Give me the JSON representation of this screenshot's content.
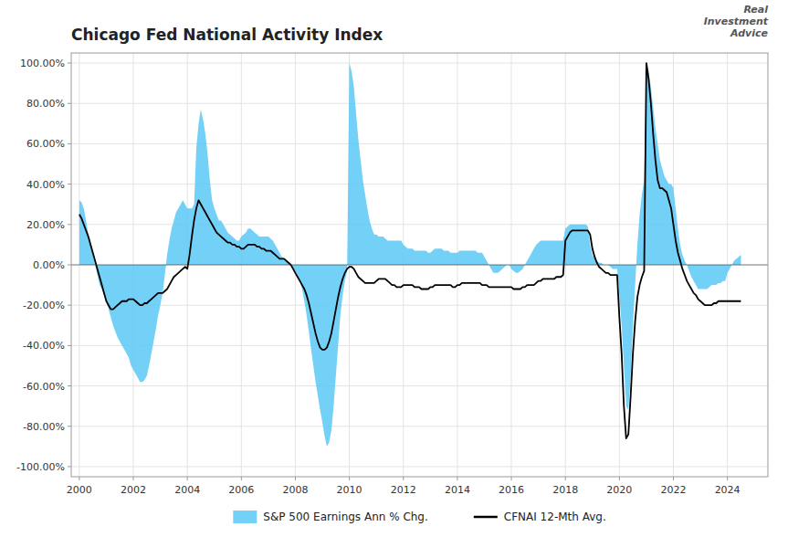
{
  "chart_data": {
    "type": "line",
    "title": "Chicago Fed National Activity Index",
    "annotations": [
      "Real\nInvestment\nAdvice"
    ],
    "xlim": [
      1999.7,
      2025.5
    ],
    "ylim": [
      -1.05,
      1.05
    ],
    "xticks": [
      2000,
      2002,
      2004,
      2006,
      2008,
      2010,
      2012,
      2014,
      2016,
      2018,
      2020,
      2022,
      2024
    ],
    "yticks": [
      {
        "value": -1.0,
        "label": "-100.00%"
      },
      {
        "value": -0.8,
        "label": "-80.00%"
      },
      {
        "value": -0.6,
        "label": "-60.00%"
      },
      {
        "value": -0.4,
        "label": "-40.00%"
      },
      {
        "value": -0.2,
        "label": "-20.00%"
      },
      {
        "value": 0.0,
        "label": "0.00%"
      },
      {
        "value": 0.2,
        "label": "20.00%"
      },
      {
        "value": 0.4,
        "label": "40.00%"
      },
      {
        "value": 0.6,
        "label": "60.00%"
      },
      {
        "value": 0.8,
        "label": "80.00%"
      },
      {
        "value": 1.0,
        "label": "100.00%"
      }
    ],
    "grid": true,
    "legend": "bottom",
    "x": [
      2000.0,
      2000.083,
      2000.167,
      2000.25,
      2000.333,
      2000.417,
      2000.5,
      2000.583,
      2000.667,
      2000.75,
      2000.833,
      2000.917,
      2001.0,
      2001.083,
      2001.167,
      2001.25,
      2001.333,
      2001.417,
      2001.5,
      2001.583,
      2001.667,
      2001.75,
      2001.833,
      2001.917,
      2002.0,
      2002.083,
      2002.167,
      2002.25,
      2002.333,
      2002.417,
      2002.5,
      2002.583,
      2002.667,
      2002.75,
      2002.833,
      2002.917,
      2003.0,
      2003.083,
      2003.167,
      2003.25,
      2003.333,
      2003.417,
      2003.5,
      2003.583,
      2003.667,
      2003.75,
      2003.833,
      2003.917,
      2004.0,
      2004.083,
      2004.167,
      2004.25,
      2004.333,
      2004.417,
      2004.5,
      2004.583,
      2004.667,
      2004.75,
      2004.833,
      2004.917,
      2005.0,
      2005.083,
      2005.167,
      2005.25,
      2005.333,
      2005.417,
      2005.5,
      2005.583,
      2005.667,
      2005.75,
      2005.833,
      2005.917,
      2006.0,
      2006.083,
      2006.167,
      2006.25,
      2006.333,
      2006.417,
      2006.5,
      2006.583,
      2006.667,
      2006.75,
      2006.833,
      2006.917,
      2007.0,
      2007.083,
      2007.167,
      2007.25,
      2007.333,
      2007.417,
      2007.5,
      2007.583,
      2007.667,
      2007.75,
      2007.833,
      2007.917,
      2008.0,
      2008.083,
      2008.167,
      2008.25,
      2008.333,
      2008.417,
      2008.5,
      2008.583,
      2008.667,
      2008.75,
      2008.833,
      2008.917,
      2009.0,
      2009.083,
      2009.167,
      2009.25,
      2009.333,
      2009.417,
      2009.5,
      2009.583,
      2009.667,
      2009.75,
      2009.833,
      2009.917,
      2010.0,
      2010.083,
      2010.167,
      2010.25,
      2010.333,
      2010.417,
      2010.5,
      2010.583,
      2010.667,
      2010.75,
      2010.833,
      2010.917,
      2011.0,
      2011.083,
      2011.167,
      2011.25,
      2011.333,
      2011.417,
      2011.5,
      2011.583,
      2011.667,
      2011.75,
      2011.833,
      2011.917,
      2012.0,
      2012.083,
      2012.167,
      2012.25,
      2012.333,
      2012.417,
      2012.5,
      2012.583,
      2012.667,
      2012.75,
      2012.833,
      2012.917,
      2013.0,
      2013.083,
      2013.167,
      2013.25,
      2013.333,
      2013.417,
      2013.5,
      2013.583,
      2013.667,
      2013.75,
      2013.833,
      2013.917,
      2014.0,
      2014.083,
      2014.167,
      2014.25,
      2014.333,
      2014.417,
      2014.5,
      2014.583,
      2014.667,
      2014.75,
      2014.833,
      2014.917,
      2015.0,
      2015.083,
      2015.167,
      2015.25,
      2015.333,
      2015.417,
      2015.5,
      2015.583,
      2015.667,
      2015.75,
      2015.833,
      2015.917,
      2016.0,
      2016.083,
      2016.167,
      2016.25,
      2016.333,
      2016.417,
      2016.5,
      2016.583,
      2016.667,
      2016.75,
      2016.833,
      2016.917,
      2017.0,
      2017.083,
      2017.167,
      2017.25,
      2017.333,
      2017.417,
      2017.5,
      2017.583,
      2017.667,
      2017.75,
      2017.833,
      2017.917,
      2018.0,
      2018.083,
      2018.167,
      2018.25,
      2018.333,
      2018.417,
      2018.5,
      2018.583,
      2018.667,
      2018.75,
      2018.833,
      2018.917,
      2019.0,
      2019.083,
      2019.167,
      2019.25,
      2019.333,
      2019.417,
      2019.5,
      2019.583,
      2019.667,
      2019.75,
      2019.833,
      2019.917,
      2020.0,
      2020.083,
      2020.167,
      2020.25,
      2020.333,
      2020.417,
      2020.5,
      2020.583,
      2020.667,
      2020.75,
      2020.833,
      2020.917,
      2021.0,
      2021.083,
      2021.167,
      2021.25,
      2021.333,
      2021.417,
      2021.5,
      2021.583,
      2021.667,
      2021.75,
      2021.833,
      2021.917,
      2022.0,
      2022.083,
      2022.167,
      2022.25,
      2022.333,
      2022.417,
      2022.5,
      2022.583,
      2022.667,
      2022.75,
      2022.833,
      2022.917,
      2023.0,
      2023.083,
      2023.167,
      2023.25,
      2023.333,
      2023.417,
      2023.5,
      2023.583,
      2023.667,
      2023.75,
      2023.833,
      2023.917,
      2024.0,
      2024.083,
      2024.167,
      2024.25,
      2024.333,
      2024.417,
      2024.5
    ],
    "series": [
      {
        "name": "S&P 500 Earnings Ann % Chg.",
        "type": "area",
        "color": "#5BC8F5",
        "values": [
          0.32,
          0.31,
          0.28,
          0.22,
          0.15,
          0.1,
          0.05,
          0.0,
          -0.05,
          -0.1,
          -0.12,
          -0.15,
          -0.18,
          -0.22,
          -0.26,
          -0.3,
          -0.33,
          -0.36,
          -0.38,
          -0.4,
          -0.42,
          -0.44,
          -0.46,
          -0.5,
          -0.52,
          -0.54,
          -0.56,
          -0.58,
          -0.58,
          -0.57,
          -0.55,
          -0.5,
          -0.44,
          -0.38,
          -0.32,
          -0.25,
          -0.2,
          -0.14,
          -0.05,
          0.05,
          0.12,
          0.18,
          0.22,
          0.26,
          0.28,
          0.3,
          0.32,
          0.3,
          0.28,
          0.28,
          0.28,
          0.3,
          0.58,
          0.7,
          0.77,
          0.72,
          0.65,
          0.55,
          0.42,
          0.32,
          0.28,
          0.25,
          0.22,
          0.22,
          0.2,
          0.18,
          0.16,
          0.15,
          0.14,
          0.13,
          0.12,
          0.12,
          0.14,
          0.15,
          0.16,
          0.18,
          0.18,
          0.17,
          0.16,
          0.15,
          0.14,
          0.14,
          0.14,
          0.14,
          0.14,
          0.13,
          0.12,
          0.1,
          0.08,
          0.06,
          0.04,
          0.03,
          0.02,
          0.01,
          0.0,
          -0.02,
          -0.03,
          -0.05,
          -0.08,
          -0.12,
          -0.18,
          -0.25,
          -0.33,
          -0.42,
          -0.5,
          -0.58,
          -0.65,
          -0.72,
          -0.78,
          -0.85,
          -0.9,
          -0.88,
          -0.82,
          -0.7,
          -0.55,
          -0.4,
          -0.25,
          -0.15,
          -0.08,
          -0.03,
          1.0,
          0.96,
          0.88,
          0.75,
          0.62,
          0.52,
          0.42,
          0.35,
          0.28,
          0.22,
          0.18,
          0.15,
          0.15,
          0.14,
          0.14,
          0.14,
          0.13,
          0.12,
          0.12,
          0.12,
          0.12,
          0.12,
          0.12,
          0.12,
          0.1,
          0.09,
          0.08,
          0.08,
          0.08,
          0.07,
          0.07,
          0.07,
          0.07,
          0.07,
          0.07,
          0.06,
          0.06,
          0.07,
          0.08,
          0.08,
          0.08,
          0.08,
          0.07,
          0.07,
          0.07,
          0.06,
          0.06,
          0.06,
          0.06,
          0.07,
          0.07,
          0.07,
          0.07,
          0.07,
          0.07,
          0.07,
          0.07,
          0.06,
          0.06,
          0.06,
          0.04,
          0.02,
          0.0,
          -0.02,
          -0.04,
          -0.04,
          -0.04,
          -0.03,
          -0.02,
          -0.01,
          0.0,
          0.0,
          -0.02,
          -0.03,
          -0.04,
          -0.04,
          -0.03,
          -0.02,
          0.0,
          0.02,
          0.04,
          0.06,
          0.08,
          0.1,
          0.11,
          0.12,
          0.12,
          0.12,
          0.12,
          0.12,
          0.12,
          0.12,
          0.12,
          0.12,
          0.12,
          0.12,
          0.18,
          0.19,
          0.2,
          0.2,
          0.2,
          0.2,
          0.2,
          0.2,
          0.2,
          0.2,
          0.19,
          0.1,
          0.05,
          0.03,
          0.02,
          0.01,
          0.01,
          0.0,
          0.0,
          0.0,
          -0.01,
          -0.02,
          -0.02,
          -0.02,
          -0.15,
          -0.3,
          -0.5,
          -0.7,
          -0.72,
          -0.55,
          -0.3,
          -0.1,
          0.1,
          0.25,
          0.35,
          0.42,
          1.0,
          0.96,
          0.88,
          0.78,
          0.68,
          0.6,
          0.52,
          0.48,
          0.44,
          0.42,
          0.4,
          0.4,
          0.38,
          0.28,
          0.18,
          0.1,
          0.05,
          0.02,
          0.0,
          -0.03,
          -0.06,
          -0.08,
          -0.1,
          -0.12,
          -0.12,
          -0.12,
          -0.12,
          -0.12,
          -0.11,
          -0.1,
          -0.1,
          -0.1,
          -0.09,
          -0.09,
          -0.08,
          -0.08,
          -0.04,
          -0.02,
          0.0,
          0.02,
          0.03,
          0.04,
          0.05
        ]
      },
      {
        "name": "CFNAI 12-Mth Avg.",
        "type": "line",
        "color": "#000000",
        "values": [
          0.25,
          0.23,
          0.2,
          0.17,
          0.14,
          0.1,
          0.06,
          0.02,
          -0.02,
          -0.06,
          -0.1,
          -0.14,
          -0.18,
          -0.2,
          -0.22,
          -0.22,
          -0.21,
          -0.2,
          -0.19,
          -0.18,
          -0.18,
          -0.18,
          -0.17,
          -0.17,
          -0.17,
          -0.18,
          -0.19,
          -0.2,
          -0.2,
          -0.19,
          -0.19,
          -0.18,
          -0.17,
          -0.16,
          -0.15,
          -0.14,
          -0.14,
          -0.14,
          -0.13,
          -0.12,
          -0.1,
          -0.08,
          -0.06,
          -0.05,
          -0.04,
          -0.03,
          -0.02,
          -0.01,
          -0.02,
          0.05,
          0.14,
          0.22,
          0.28,
          0.32,
          0.3,
          0.28,
          0.26,
          0.24,
          0.22,
          0.2,
          0.18,
          0.16,
          0.15,
          0.14,
          0.13,
          0.12,
          0.11,
          0.11,
          0.1,
          0.1,
          0.09,
          0.09,
          0.08,
          0.08,
          0.09,
          0.1,
          0.1,
          0.1,
          0.1,
          0.09,
          0.09,
          0.08,
          0.08,
          0.07,
          0.07,
          0.07,
          0.06,
          0.05,
          0.04,
          0.03,
          0.03,
          0.03,
          0.02,
          0.01,
          0.0,
          -0.02,
          -0.04,
          -0.06,
          -0.08,
          -0.1,
          -0.12,
          -0.15,
          -0.19,
          -0.24,
          -0.29,
          -0.34,
          -0.38,
          -0.41,
          -0.42,
          -0.42,
          -0.41,
          -0.38,
          -0.34,
          -0.28,
          -0.22,
          -0.16,
          -0.11,
          -0.07,
          -0.04,
          -0.02,
          -0.01,
          -0.01,
          -0.02,
          -0.04,
          -0.06,
          -0.07,
          -0.08,
          -0.09,
          -0.09,
          -0.09,
          -0.09,
          -0.09,
          -0.08,
          -0.07,
          -0.07,
          -0.07,
          -0.07,
          -0.08,
          -0.09,
          -0.1,
          -0.1,
          -0.11,
          -0.11,
          -0.11,
          -0.1,
          -0.1,
          -0.1,
          -0.1,
          -0.1,
          -0.11,
          -0.11,
          -0.11,
          -0.12,
          -0.12,
          -0.12,
          -0.12,
          -0.11,
          -0.11,
          -0.1,
          -0.1,
          -0.1,
          -0.1,
          -0.1,
          -0.1,
          -0.1,
          -0.1,
          -0.11,
          -0.11,
          -0.1,
          -0.1,
          -0.09,
          -0.09,
          -0.09,
          -0.09,
          -0.09,
          -0.09,
          -0.09,
          -0.09,
          -0.09,
          -0.1,
          -0.1,
          -0.1,
          -0.11,
          -0.11,
          -0.11,
          -0.11,
          -0.11,
          -0.11,
          -0.11,
          -0.11,
          -0.11,
          -0.11,
          -0.11,
          -0.12,
          -0.12,
          -0.12,
          -0.12,
          -0.11,
          -0.11,
          -0.1,
          -0.1,
          -0.1,
          -0.1,
          -0.09,
          -0.08,
          -0.08,
          -0.07,
          -0.07,
          -0.07,
          -0.07,
          -0.07,
          -0.07,
          -0.06,
          -0.06,
          -0.06,
          -0.05,
          0.12,
          0.14,
          0.16,
          0.17,
          0.17,
          0.17,
          0.17,
          0.17,
          0.17,
          0.17,
          0.17,
          0.15,
          0.08,
          0.04,
          0.01,
          -0.01,
          -0.02,
          -0.03,
          -0.04,
          -0.04,
          -0.05,
          -0.05,
          -0.05,
          -0.05,
          -0.26,
          -0.44,
          -0.7,
          -0.86,
          -0.84,
          -0.65,
          -0.44,
          -0.28,
          -0.16,
          -0.1,
          -0.06,
          -0.03,
          1.0,
          0.92,
          0.8,
          0.65,
          0.52,
          0.42,
          0.38,
          0.38,
          0.37,
          0.36,
          0.32,
          0.28,
          0.2,
          0.12,
          0.06,
          0.02,
          -0.02,
          -0.05,
          -0.08,
          -0.1,
          -0.12,
          -0.14,
          -0.15,
          -0.17,
          -0.18,
          -0.19,
          -0.2,
          -0.2,
          -0.2,
          -0.2,
          -0.19,
          -0.19,
          -0.18,
          -0.18,
          -0.18,
          -0.18,
          -0.18,
          -0.18,
          -0.18,
          -0.18,
          -0.18,
          -0.18,
          -0.18
        ]
      }
    ]
  }
}
